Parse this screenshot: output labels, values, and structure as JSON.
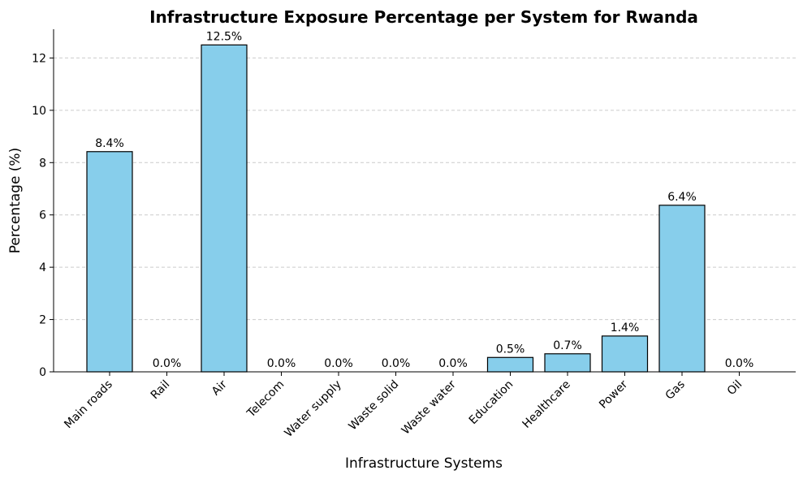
{
  "chart_data": {
    "type": "bar",
    "title": "Infrastructure Exposure Percentage per System for Rwanda",
    "xlabel": "Infrastructure Systems",
    "ylabel": "Percentage (%)",
    "categories": [
      "Main roads",
      "Rail",
      "Air",
      "Telecom",
      "Water supply",
      "Waste solid",
      "Waste water",
      "Education",
      "Healthcare",
      "Power",
      "Gas",
      "Oil"
    ],
    "values": [
      8.42,
      0.0,
      12.5,
      0.0,
      0.0,
      0.0,
      0.0,
      0.55,
      0.69,
      1.37,
      6.37,
      0.0
    ],
    "data_labels": [
      "8.4%",
      "0.0%",
      "12.5%",
      "0.0%",
      "0.0%",
      "0.0%",
      "0.0%",
      "0.5%",
      "0.7%",
      "1.4%",
      "6.4%",
      "0.0%"
    ],
    "yticks": [
      0,
      2,
      4,
      6,
      8,
      10,
      12
    ],
    "ylim": [
      0,
      13.1
    ],
    "grid": "y-dashed",
    "colors": {
      "bar_fill": "#87ceeb",
      "bar_edge": "#000000",
      "grid": "#cccccc"
    }
  }
}
